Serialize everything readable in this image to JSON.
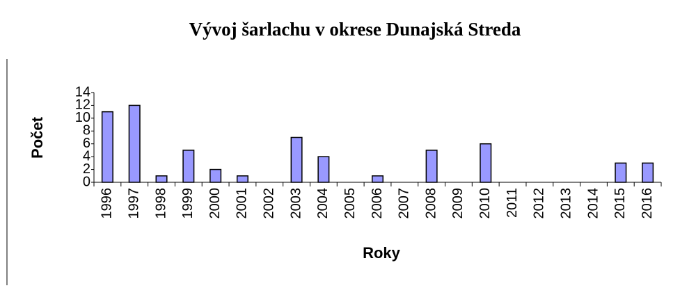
{
  "chart_data": {
    "type": "bar",
    "title": "Vývoj šarlachu v okrese Dunajská Streda",
    "x_label": "Roky",
    "y_label": "Počet",
    "categories": [
      "1996",
      "1997",
      "1998",
      "1999",
      "2000",
      "2001",
      "2002",
      "2003",
      "2004",
      "2005",
      "2006",
      "2007",
      "2008",
      "2009",
      "2010",
      "2011",
      "2012",
      "2013",
      "2014",
      "2015",
      "2016"
    ],
    "values": [
      11,
      12,
      1,
      5,
      2,
      1,
      0,
      7,
      4,
      0,
      1,
      0,
      5,
      0,
      6,
      0,
      0,
      0,
      0,
      3,
      3
    ],
    "color": "#9999ff",
    "ylim": [
      0,
      14
    ],
    "yticks": [
      0,
      2,
      4,
      6,
      8,
      10,
      12,
      14
    ],
    "grid": false
  }
}
